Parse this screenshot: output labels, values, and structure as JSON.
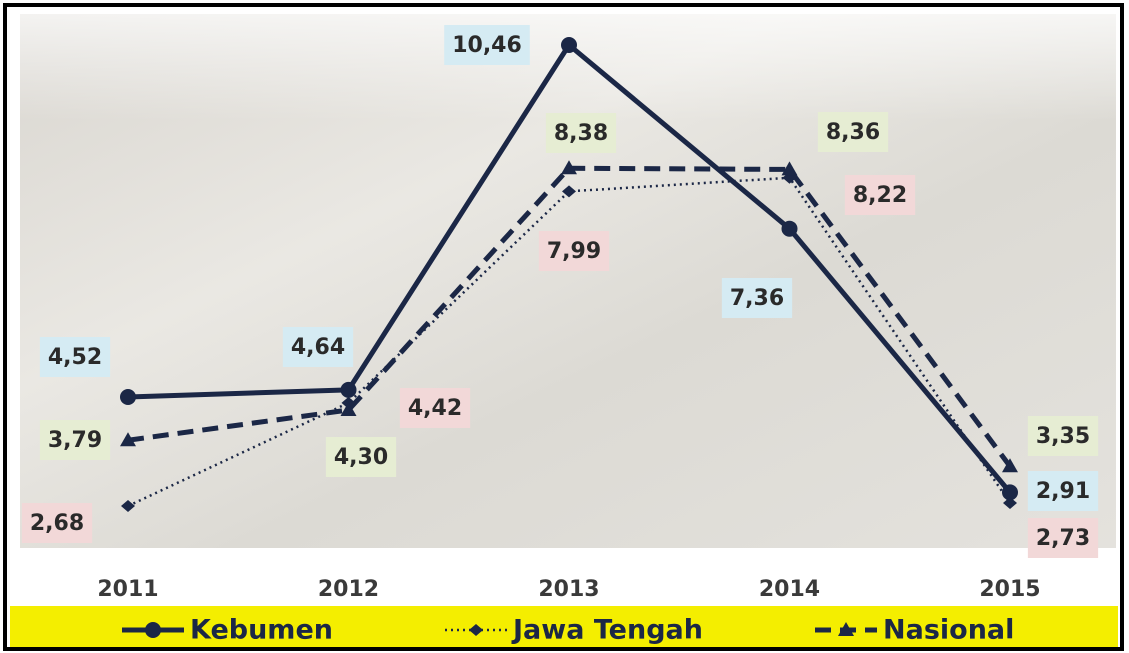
{
  "chart_data": {
    "type": "line",
    "categories": [
      "2011",
      "2012",
      "2013",
      "2014",
      "2015"
    ],
    "series": [
      {
        "name": "Kebumen",
        "color": "#1b2746",
        "style": "solid",
        "label_color": "#d5ebf3",
        "values": [
          4.52,
          4.64,
          10.46,
          7.36,
          2.91
        ],
        "value_labels": [
          "4,52",
          "4,64",
          "10,46",
          "7,36",
          "2,91"
        ]
      },
      {
        "name": "Jawa Tengah",
        "color": "#1b2746",
        "style": "dotted",
        "label_color": "#f2d8d8",
        "values": [
          2.68,
          4.42,
          7.99,
          8.22,
          2.73
        ],
        "value_labels": [
          "2,68",
          "4,42",
          "7,99",
          "8,22",
          "2,73"
        ]
      },
      {
        "name": "Nasional",
        "color": "#1b2746",
        "style": "dashed",
        "label_color": "#e6edd3",
        "values": [
          3.79,
          4.3,
          8.38,
          8.36,
          3.35
        ],
        "value_labels": [
          "3,79",
          "4,30",
          "8,38",
          "8,36",
          "3,35"
        ]
      }
    ]
  }
}
